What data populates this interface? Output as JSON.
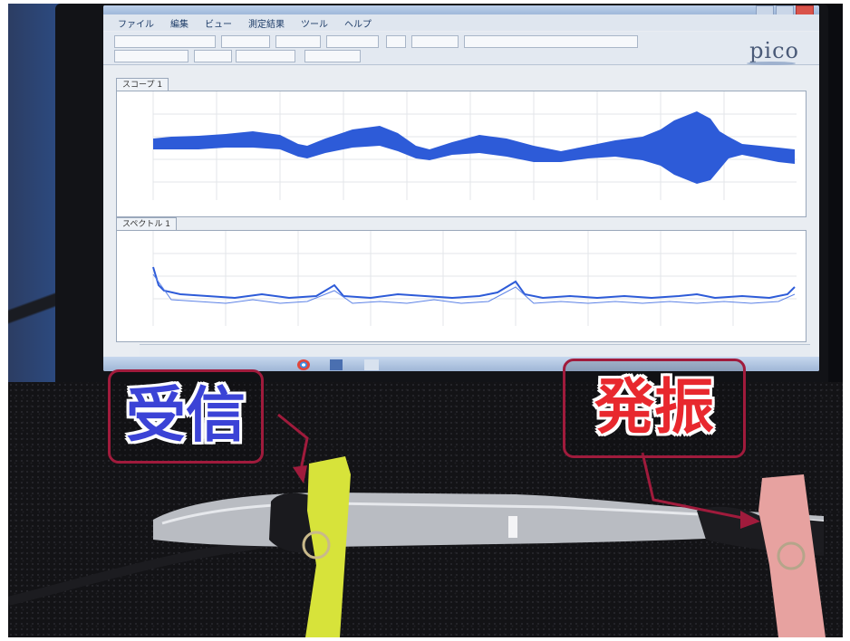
{
  "software": {
    "menu": [
      "ファイル",
      "編集",
      "ビュー",
      "測定結果",
      "ツール",
      "ヘルプ"
    ],
    "logo": "pico",
    "scope_tab": "スコープ 1",
    "spectrum_tab": "スペクトル 1"
  },
  "labels": {
    "receive": "受信",
    "oscillate": "発振"
  },
  "colors": {
    "waveform": "#2d5bd8",
    "receive_text": "#3b43d6",
    "oscillate_text": "#e8282e",
    "callout_border": "#a01b3c",
    "pointer": "#a01b3c"
  }
}
